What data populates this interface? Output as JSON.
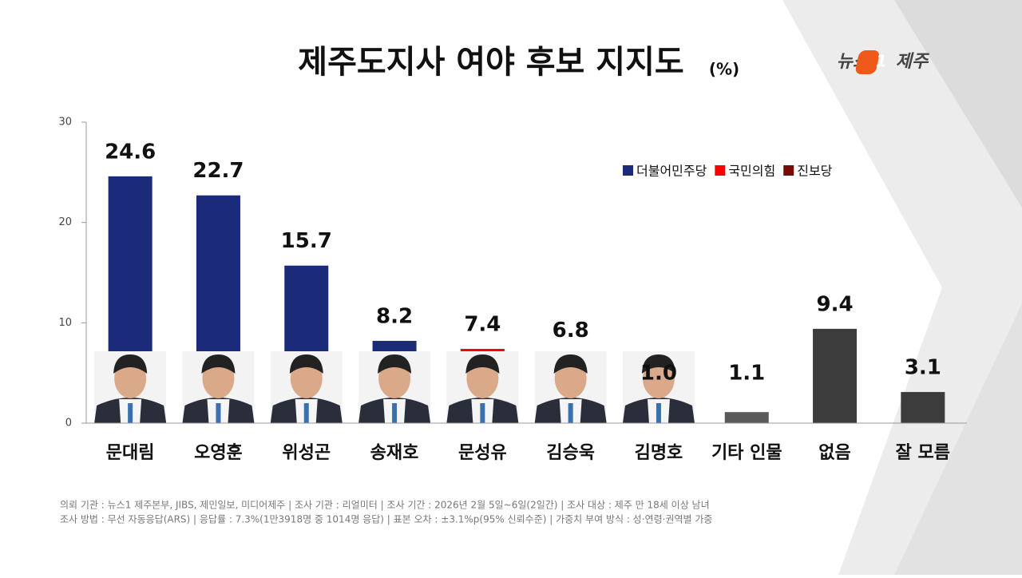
{
  "chart_data": {
    "type": "bar",
    "title": "제주도지사 여야 후보 지지도",
    "unit": "(%)",
    "categories": [
      "문대림",
      "오영훈",
      "위성곤",
      "송재호",
      "문성유",
      "김승욱",
      "김명호",
      "기타 인물",
      "없음",
      "잘 모름"
    ],
    "values": [
      24.6,
      22.7,
      15.7,
      8.2,
      7.4,
      6.8,
      1.0,
      1.1,
      9.4,
      3.1
    ],
    "value_labels": [
      "24.6",
      "22.7",
      "15.7",
      "8.2",
      "7.4",
      "6.8",
      "1.0",
      "1.1",
      "9.4",
      "3.1"
    ],
    "colors": [
      "#1b2b7a",
      "#1b2b7a",
      "#1b2b7a",
      "#1b2b7a",
      "#ff0000",
      "#ff0000",
      "#7a0a0a",
      "#5a5a5a",
      "#3c3c3c",
      "#3c3c3c"
    ],
    "legend": [
      {
        "name": "더불어민주당",
        "color": "#1b2b7a"
      },
      {
        "name": "국민의힘",
        "color": "#ff0000"
      },
      {
        "name": "진보당",
        "color": "#7a0a0a"
      }
    ],
    "ylim": [
      0,
      30
    ],
    "yticks": [
      0,
      10,
      20,
      30
    ]
  },
  "logo": [
    "뉴스",
    "1",
    "제주"
  ],
  "footnotes": [
    "의뢰 기관 : 뉴스1 제주본부, JIBS, 제민일보, 미디어제주 | 조사 기관 : 리얼미터 | 조사 기간 : 2026년 2월 5일~6일(2일간) | 조사 대상 : 제주 만 18세 이상 남녀",
    "조사 방법 : 무선 자동응답(ARS) | 응답률 : 7.3%(1만3918명 중 1014명 응답) | 표본 오차 : ±3.1%p(95% 신뢰수준) | 가중치 부여 방식 : 성·연령·권역별 가중"
  ]
}
